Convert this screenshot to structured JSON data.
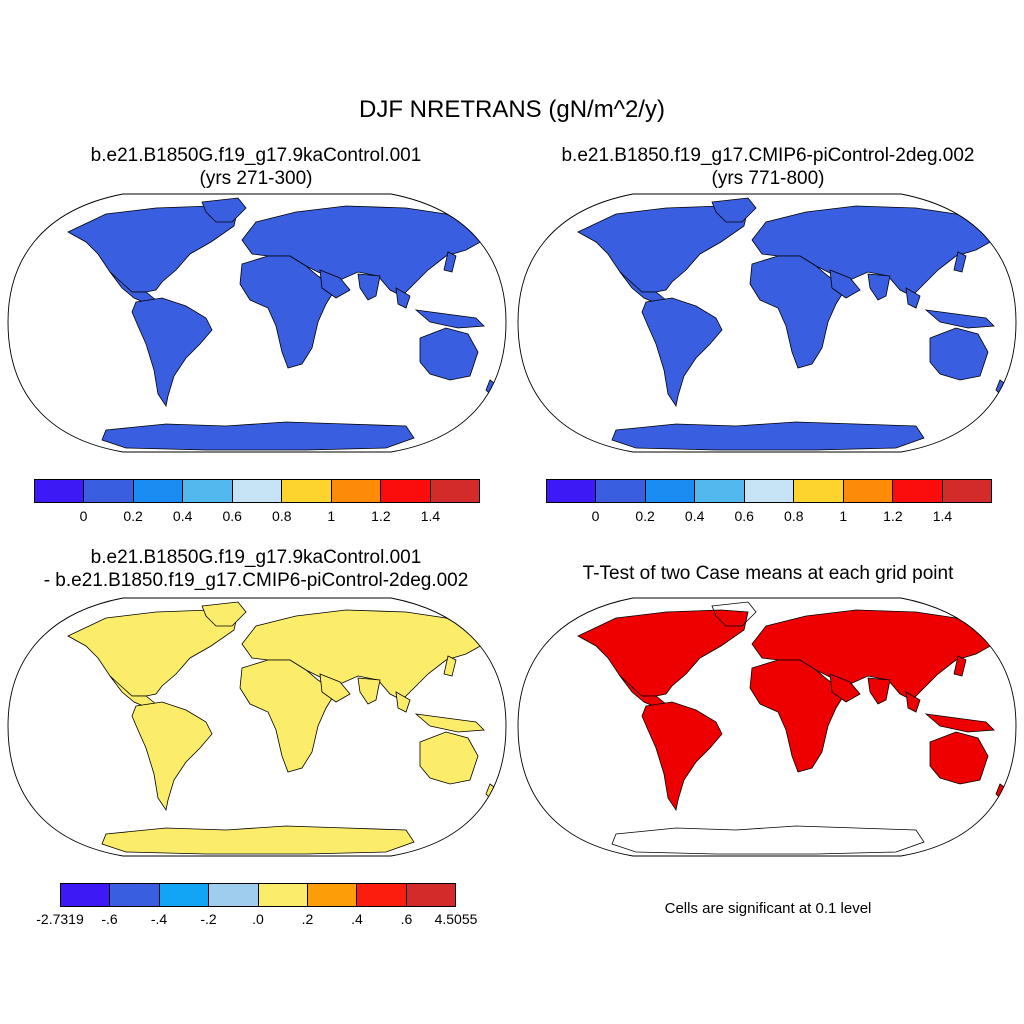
{
  "figure": {
    "title": "DJF NRETRANS (gN/m^2/y)"
  },
  "panels": [
    {
      "id": "case1",
      "title_line1": "b.e21.B1850G.f19_g17.9kaControl.001",
      "title_line2": "(yrs 271-300)",
      "fill_color": "#3a5ee0",
      "colorbar": {
        "colors": [
          "#3d19f5",
          "#3a5ee0",
          "#1a8cf2",
          "#52b8ee",
          "#c6e4f6",
          "#fdd42e",
          "#fd8a08",
          "#fb0d0d",
          "#d32a2a"
        ],
        "tick_labels": [
          "0",
          "0.2",
          "0.4",
          "0.6",
          "0.8",
          "1",
          "1.2",
          "1.4"
        ]
      }
    },
    {
      "id": "case2",
      "title_line1": "b.e21.B1850.f19_g17.CMIP6-piControl-2deg.002",
      "title_line2": "(yrs 771-800)",
      "fill_color": "#3a5ee0",
      "colorbar": {
        "colors": [
          "#3d19f5",
          "#3a5ee0",
          "#1a8cf2",
          "#52b8ee",
          "#c6e4f6",
          "#fdd42e",
          "#fd8a08",
          "#fb0d0d",
          "#d32a2a"
        ],
        "tick_labels": [
          "0",
          "0.2",
          "0.4",
          "0.6",
          "0.8",
          "1",
          "1.2",
          "1.4"
        ]
      }
    },
    {
      "id": "difference",
      "title_line1": "b.e21.B1850G.f19_g17.9kaControl.001",
      "title_line2": "- b.e21.B1850.f19_g17.CMIP6-piControl-2deg.002",
      "fill_color": "#fbec6a",
      "colorbar": {
        "colors": [
          "#3d19f5",
          "#3a5ee0",
          "#12a4f5",
          "#9fcdee",
          "#fbec6a",
          "#fd9d08",
          "#fb1d0d",
          "#d32a2a"
        ],
        "tick_labels": [
          "-2.7319",
          "-.6",
          "-.4",
          "-.2",
          ".0",
          ".2",
          ".4",
          ".6",
          "4.5055"
        ]
      }
    },
    {
      "id": "ttest",
      "title_line1": "T-Test of two Case means at each grid point",
      "fill_color": "#ee0000",
      "note": "Cells are significant at 0.1 level"
    }
  ]
}
